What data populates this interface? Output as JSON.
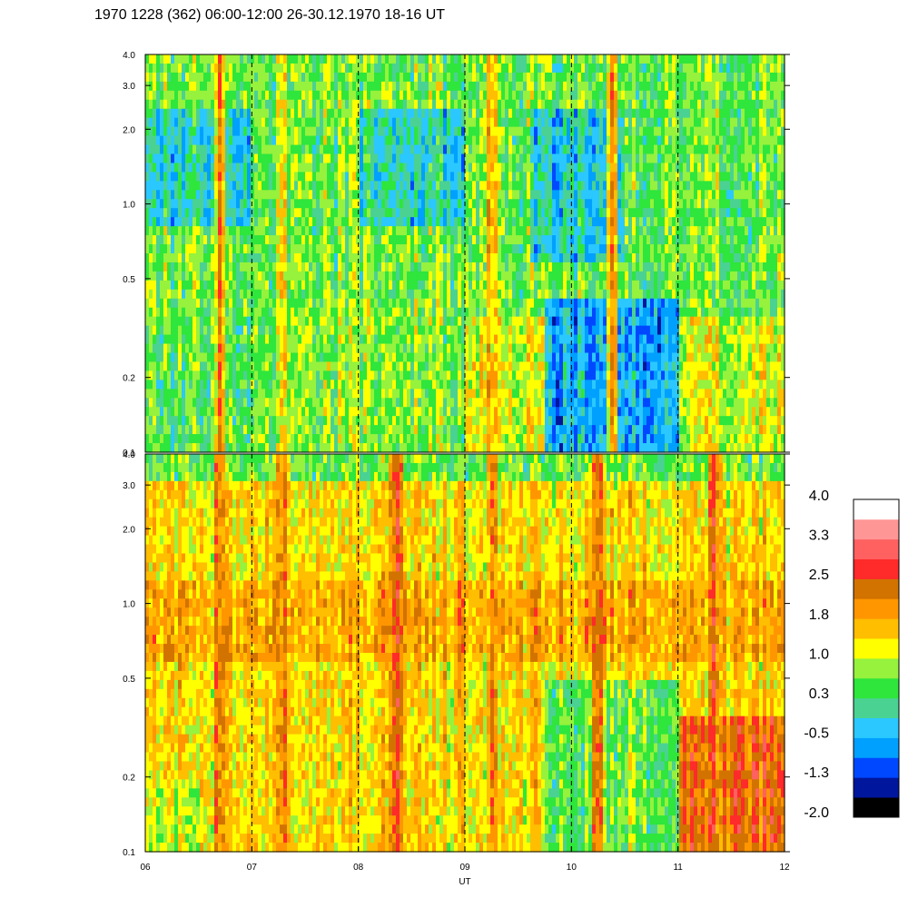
{
  "title": "1970 1228 (362) 06:00-12:00 26-30.12.1970  18-16 UT",
  "chart_data": [
    {
      "type": "heatmap",
      "panel": "top",
      "x_range": [
        6,
        12
      ],
      "y_range": [
        0.1,
        4.0
      ],
      "y_scale": "log",
      "y_ticks": [
        "0.1",
        "0.2",
        "0.5",
        "1.0",
        "2.0",
        "3.0",
        "4.0"
      ],
      "dashed_hours": [
        7,
        8,
        9,
        10,
        11
      ],
      "background_level": 0.6,
      "background_variation": 1.0,
      "regions": [
        {
          "x": [
            6.0,
            7.0
          ],
          "y": [
            0.1,
            0.35
          ],
          "level": 0.4
        },
        {
          "x": [
            7.0,
            9.0
          ],
          "y": [
            0.1,
            0.4
          ],
          "level": 0.7
        },
        {
          "x": [
            9.0,
            9.75
          ],
          "y": [
            0.1,
            0.35
          ],
          "level": 1.1
        },
        {
          "x": [
            9.75,
            11.0
          ],
          "y": [
            0.1,
            0.4
          ],
          "level": -0.5
        },
        {
          "x": [
            11.0,
            12.0
          ],
          "y": [
            0.1,
            0.35
          ],
          "level": 1.1
        },
        {
          "x": [
            6.0,
            7.0
          ],
          "y": [
            0.8,
            2.5
          ],
          "level": -0.2
        },
        {
          "x": [
            8.0,
            9.0
          ],
          "y": [
            0.8,
            2.5
          ],
          "level": -0.1
        },
        {
          "x": [
            9.6,
            10.5
          ],
          "y": [
            0.6,
            2.5
          ],
          "level": -0.2
        }
      ],
      "streaks": [
        {
          "x": 6.7,
          "level": 1.9
        },
        {
          "x": 7.3,
          "level": 1.2
        },
        {
          "x": 9.25,
          "level": 1.9
        },
        {
          "x": 10.38,
          "level": 1.8
        }
      ]
    },
    {
      "type": "heatmap",
      "panel": "bottom",
      "x_range": [
        6,
        12
      ],
      "y_range": [
        0.1,
        4.0
      ],
      "y_scale": "log",
      "y_ticks": [
        "0.1",
        "0.2",
        "0.5",
        "1.0",
        "2.0",
        "3.0",
        "4.0"
      ],
      "x_ticks": [
        "06",
        "07",
        "08",
        "09",
        "10",
        "11",
        "12"
      ],
      "xlabel": "UT",
      "dashed_hours": [
        7,
        8,
        9,
        10,
        11
      ],
      "background_level": 1.4,
      "background_variation": 0.9,
      "regions": [
        {
          "x": [
            6.0,
            12.0
          ],
          "y": [
            3.0,
            4.0
          ],
          "level": 0.6
        },
        {
          "x": [
            6.0,
            12.0
          ],
          "y": [
            0.6,
            1.2
          ],
          "level": 1.8
        },
        {
          "x": [
            9.75,
            11.0
          ],
          "y": [
            0.1,
            0.5
          ],
          "level": 0.6
        },
        {
          "x": [
            11.0,
            12.0
          ],
          "y": [
            0.1,
            0.35
          ],
          "level": 2.3
        },
        {
          "x": [
            6.0,
            6.5
          ],
          "y": [
            0.1,
            0.2
          ],
          "level": 1.0
        }
      ],
      "streaks": [
        {
          "x": 6.7,
          "level": 2.2
        },
        {
          "x": 7.3,
          "level": 2.0
        },
        {
          "x": 8.35,
          "level": 2.5
        },
        {
          "x": 9.25,
          "level": 2.2
        },
        {
          "x": 10.25,
          "level": 2.3
        },
        {
          "x": 11.35,
          "level": 2.4
        }
      ]
    }
  ],
  "colorbar": {
    "labels": [
      "4.0",
      "3.3",
      "2.5",
      "1.8",
      "1.0",
      "0.3",
      "-0.5",
      "-1.3",
      "-2.0"
    ],
    "colors": [
      "#000000",
      "#00169c",
      "#0048ff",
      "#00a0ff",
      "#2ac8ff",
      "#4ad292",
      "#2ee63c",
      "#96f23c",
      "#ffff00",
      "#ffbe00",
      "#ff9600",
      "#d27300",
      "#ff2a2a",
      "#ff6060",
      "#ff9696",
      "#ffffff"
    ],
    "min": -2.0,
    "max": 4.0
  }
}
